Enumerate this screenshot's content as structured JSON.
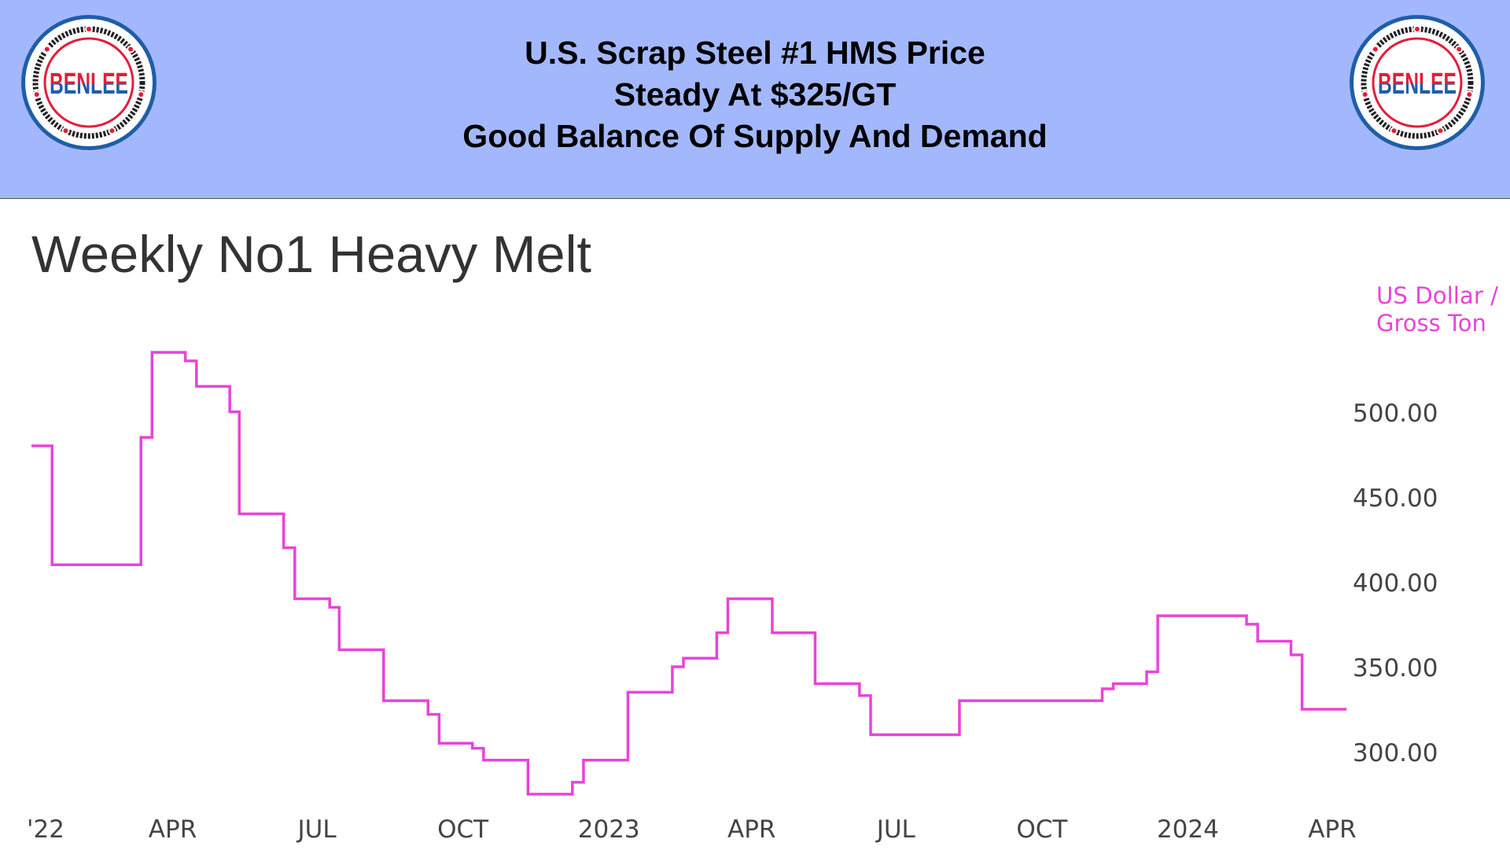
{
  "header": {
    "lines": [
      "U.S. Scrap Steel #1 HMS Price",
      "Steady At $325/GT",
      "Good Balance Of Supply And Demand"
    ],
    "background": "#a3b8fc",
    "logo": {
      "brand": "BENLEE",
      "ring_text": "TARPS ★ ROLL-OFFS ★ DUMPS ★ LUGGERS ★ BENLEE.COM ★ 1-734-722-8100 ★ PARTS ★",
      "colors": {
        "blue": "#1f5ea8",
        "red": "#e0203a"
      }
    }
  },
  "chart_data": {
    "type": "line",
    "step": true,
    "title": "Weekly No1 Heavy Melt",
    "ylabel": "US Dollar / Gross Ton",
    "xlabel": "",
    "line_color": "#e844d8",
    "ylim": [
      270,
      540
    ],
    "yticks": [
      "500.00",
      "450.00",
      "400.00",
      "350.00",
      "300.00"
    ],
    "ytick_values": [
      500,
      450,
      400,
      350,
      300
    ],
    "xticks": [
      {
        "label": "'22",
        "date": "2022-01-01"
      },
      {
        "label": "APR",
        "date": "2022-04-01"
      },
      {
        "label": "JUL",
        "date": "2022-07-01"
      },
      {
        "label": "OCT",
        "date": "2022-10-01"
      },
      {
        "label": "2023",
        "date": "2023-01-01"
      },
      {
        "label": "APR",
        "date": "2023-04-01"
      },
      {
        "label": "JUL",
        "date": "2023-07-01"
      },
      {
        "label": "OCT",
        "date": "2023-10-01"
      },
      {
        "label": "2024",
        "date": "2024-01-01"
      },
      {
        "label": "APR",
        "date": "2024-04-01"
      }
    ],
    "grid": false,
    "points": [
      [
        "2022-01-02",
        480
      ],
      [
        "2022-01-15",
        410
      ],
      [
        "2022-03-12",
        485
      ],
      [
        "2022-03-19",
        535
      ],
      [
        "2022-04-09",
        530
      ],
      [
        "2022-04-16",
        515
      ],
      [
        "2022-05-07",
        500
      ],
      [
        "2022-05-13",
        440
      ],
      [
        "2022-06-10",
        420
      ],
      [
        "2022-06-17",
        390
      ],
      [
        "2022-07-09",
        385
      ],
      [
        "2022-07-15",
        360
      ],
      [
        "2022-08-12",
        330
      ],
      [
        "2022-09-09",
        322
      ],
      [
        "2022-09-16",
        305
      ],
      [
        "2022-10-07",
        302
      ],
      [
        "2022-10-14",
        295
      ],
      [
        "2022-11-11",
        275
      ],
      [
        "2022-12-09",
        282
      ],
      [
        "2022-12-16",
        295
      ],
      [
        "2023-01-13",
        335
      ],
      [
        "2023-02-10",
        350
      ],
      [
        "2023-02-17",
        355
      ],
      [
        "2023-03-10",
        370
      ],
      [
        "2023-03-17",
        390
      ],
      [
        "2023-04-14",
        370
      ],
      [
        "2023-05-11",
        340
      ],
      [
        "2023-06-08",
        333
      ],
      [
        "2023-06-15",
        310
      ],
      [
        "2023-08-10",
        330
      ],
      [
        "2023-11-08",
        337
      ],
      [
        "2023-11-15",
        340
      ],
      [
        "2023-12-06",
        347
      ],
      [
        "2023-12-13",
        380
      ],
      [
        "2024-02-07",
        375
      ],
      [
        "2024-02-14",
        365
      ],
      [
        "2024-03-06",
        357
      ],
      [
        "2024-03-13",
        325
      ],
      [
        "2024-04-10",
        325
      ]
    ]
  }
}
